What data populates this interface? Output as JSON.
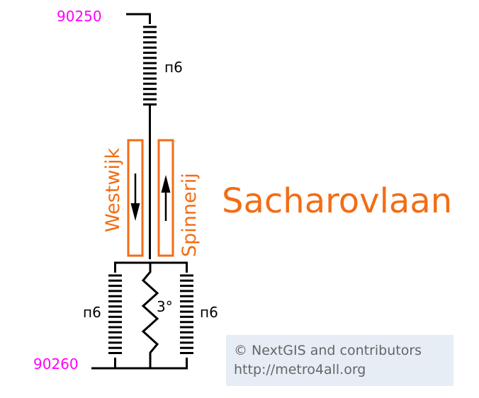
{
  "station": {
    "name": "Sacharovlaan",
    "color": "#f26d15"
  },
  "gates": {
    "top": "90250",
    "bottom": "90260",
    "color": "#ff00ff"
  },
  "stairs": {
    "top_label": "п6",
    "bottom_left_label": "п6",
    "bottom_right_label": "п6"
  },
  "ramp": {
    "slope_label": "3°"
  },
  "platforms": {
    "left": {
      "direction_label": "Westwijk",
      "arrow": "down-arrow"
    },
    "right": {
      "direction_label": "Spinnerij",
      "arrow": "up-arrow"
    }
  },
  "credits": {
    "line1": "© NextGIS and contributors",
    "line2": "http://metro4all.org"
  }
}
